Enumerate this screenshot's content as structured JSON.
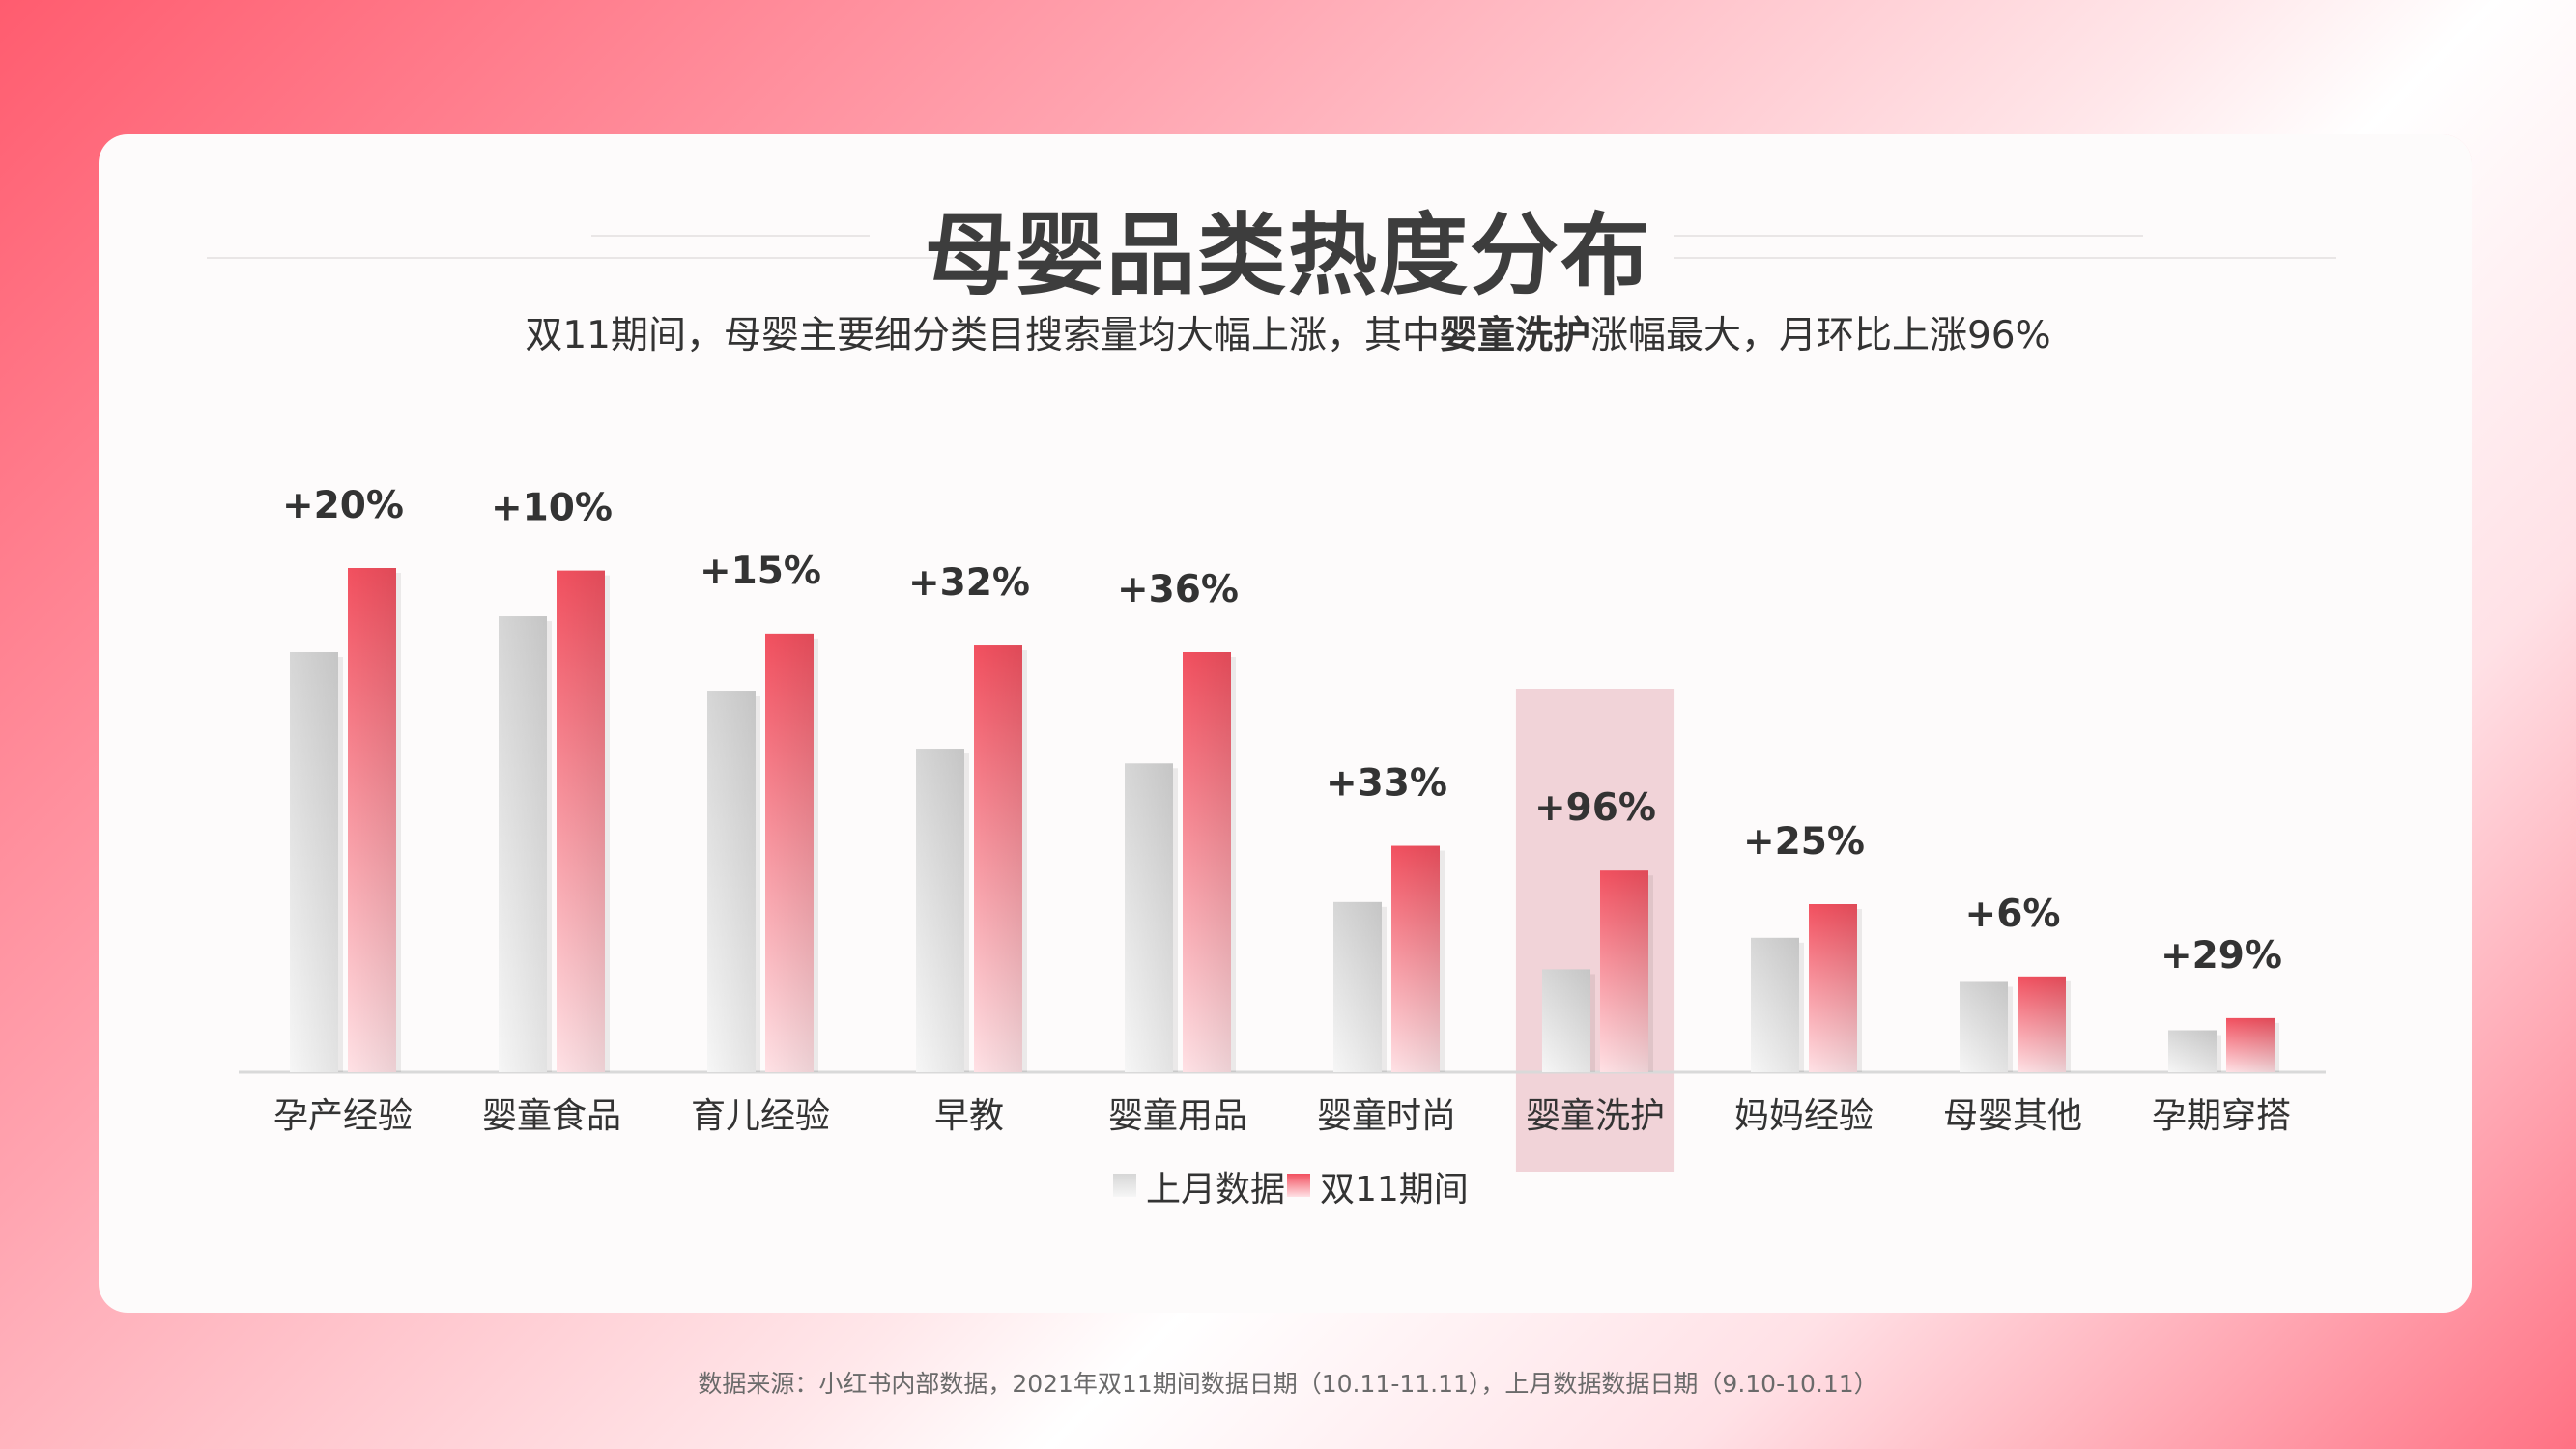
{
  "page": {
    "title": "母婴品类热度分布",
    "subtitle": {
      "prefix": "双11期间，母婴主要细分类目搜索量均大幅上涨，其中",
      "highlight": "婴童洗护",
      "suffix": "涨幅最大，月环比上涨96%"
    },
    "footer": "数据来源：小红书内部数据，2021年双11期间数据日期（10.11-11.11），上月数据数据日期（9.10-10.11）"
  },
  "colors": {
    "accent": "#f2505f",
    "grey_bar": "#d8d8d8",
    "highlight_band": "#f1d3d8",
    "text": "#333333"
  },
  "chart_data": {
    "type": "bar",
    "categories": [
      "孕产经验",
      "婴童食品",
      "育儿经验",
      "早教",
      "婴童用品",
      "婴童时尚",
      "婴童洗护",
      "妈妈经验",
      "母婴其他",
      "孕期穿搭"
    ],
    "series": [
      {
        "name": "上月数据",
        "values": [
          100,
          108.5,
          90.8,
          77.0,
          73.5,
          40.5,
          24.5,
          32.0,
          21.5,
          10.0
        ]
      },
      {
        "name": "双11期间",
        "values": [
          120,
          119.4,
          104.4,
          101.6,
          100.0,
          53.9,
          48.0,
          40.0,
          22.8,
          12.9
        ]
      }
    ],
    "annotations": [
      "+20%",
      "+10%",
      "+15%",
      "+32%",
      "+36%",
      "+33%",
      "+96%",
      "+25%",
      "+6%",
      "+29%"
    ],
    "highlight_category": "婴童洗护",
    "ylim": [
      0,
      120
    ],
    "grid": false,
    "legend_position": "bottom"
  }
}
